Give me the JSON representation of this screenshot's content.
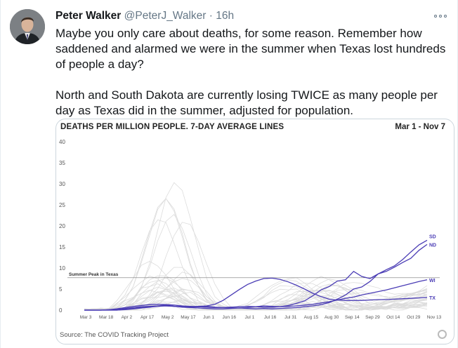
{
  "tweet": {
    "author_name": "Peter Walker",
    "handle": "@PeterJ_Walker",
    "separator": "·",
    "time": "16h",
    "paragraph_1": "Maybe you only care about deaths, for some reason. Remember how saddened and alarmed we were in the summer when Texas lost hundreds of people a day?",
    "paragraph_2": "North and South Dakota are currently losing TWICE as many people per day as Texas did in the summer, adjusted for population."
  },
  "icons": {
    "more": "more-horizontal-icon",
    "avatar": "profile-photo",
    "source_logo": "covid-tracking-logo"
  },
  "colors": {
    "highlight": "#4a3cb5",
    "background_lines": "#dcdcdc"
  },
  "chart_data": {
    "type": "line",
    "title": "DEATHS PER MILLION PEOPLE. 7-DAY AVERAGE LINES",
    "date_range": "Mar 1 - Nov 7",
    "source": "Source: The COVID Tracking Project",
    "x_ticks": [
      "Mar 3",
      "Mar 18",
      "Apr 2",
      "Apr 17",
      "May 2",
      "May 17",
      "Jun 1",
      "Jun 16",
      "Jul 1",
      "Jul 16",
      "Jul 31",
      "Aug 15",
      "Aug 30",
      "Sep 14",
      "Sep 29",
      "Oct 14",
      "Oct 29",
      "Nov 13"
    ],
    "y_ticks": [
      0,
      5,
      10,
      15,
      20,
      25,
      30,
      35,
      40
    ],
    "ylim": [
      0,
      41
    ],
    "grid": false,
    "annotation": {
      "label": "Summer Peak in Texas",
      "y": 7.7
    },
    "series": [
      {
        "name": "SD",
        "values": [
          0,
          0,
          0,
          0,
          0,
          0.2,
          0.4,
          0.6,
          0.8,
          1.0,
          1.2,
          0.9,
          0.7,
          0.6,
          0.5,
          0.4,
          0.3,
          0.3,
          0.4,
          0.5,
          0.4,
          0.3,
          0.4,
          0.3,
          0.4,
          0.5,
          0.6,
          0.8,
          1.0,
          1.3,
          1.8,
          2.6,
          3.6,
          5.0,
          5.5,
          6.8,
          8.6,
          9.6,
          10.5,
          12.0,
          13.8,
          15.5,
          16.6
        ]
      },
      {
        "name": "ND",
        "values": [
          0,
          0,
          0,
          0,
          0,
          0.1,
          0.3,
          0.5,
          0.7,
          0.9,
          1.0,
          0.9,
          0.8,
          0.7,
          0.8,
          0.9,
          0.7,
          0.6,
          0.5,
          0.5,
          0.6,
          0.8,
          1.0,
          0.9,
          0.8,
          1.1,
          1.6,
          2.2,
          3.4,
          4.8,
          5.6,
          6.9,
          7.2,
          9.2,
          8.0,
          7.5,
          8.6,
          9.2,
          10.2,
          11.3,
          12.3,
          14.2,
          15.6
        ]
      },
      {
        "name": "WI",
        "values": [
          0,
          0,
          0,
          0.1,
          0.3,
          0.6,
          0.9,
          1.1,
          1.3,
          1.4,
          1.3,
          1.2,
          1.0,
          0.9,
          0.8,
          0.7,
          0.6,
          0.6,
          0.7,
          0.8,
          0.9,
          0.8,
          0.7,
          0.7,
          0.8,
          0.9,
          1.0,
          1.2,
          1.4,
          1.7,
          2.0,
          2.4,
          2.8,
          3.1,
          3.6,
          4.0,
          4.4,
          4.8,
          5.3,
          5.8,
          6.3,
          6.8,
          7.2
        ]
      },
      {
        "name": "TX",
        "values": [
          0,
          0,
          0,
          0.1,
          0.2,
          0.4,
          0.6,
          0.8,
          0.9,
          1.0,
          1.0,
          0.9,
          0.8,
          0.8,
          0.9,
          1.0,
          1.4,
          2.3,
          3.6,
          4.9,
          6.1,
          6.9,
          7.5,
          7.6,
          7.3,
          6.7,
          5.9,
          5.0,
          4.0,
          3.2,
          2.6,
          2.4,
          2.3,
          2.3,
          2.3,
          2.4,
          2.5,
          2.5,
          2.6,
          2.7,
          2.8,
          2.9,
          3.0
        ]
      }
    ]
  }
}
